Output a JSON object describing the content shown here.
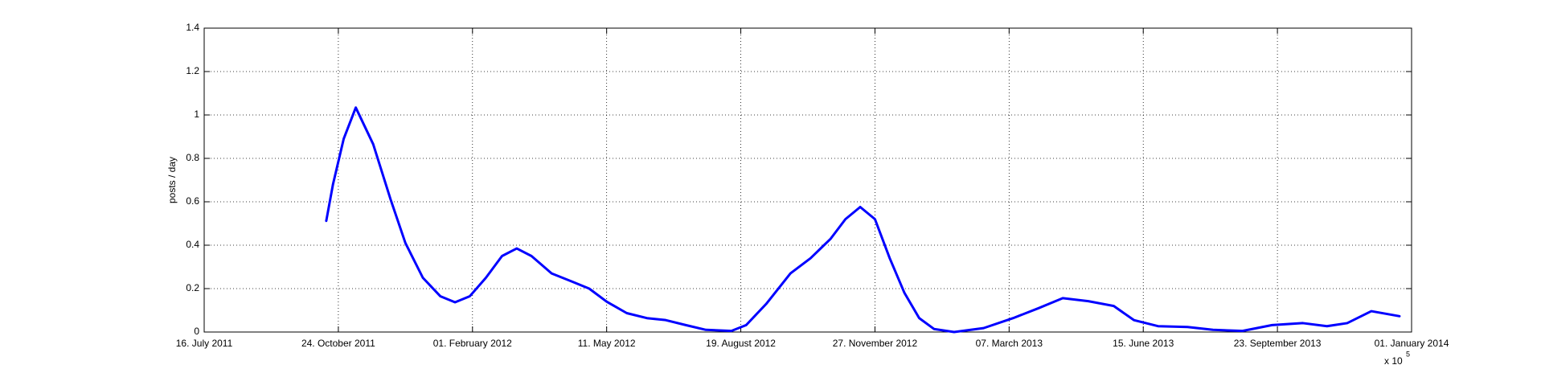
{
  "chart_data": {
    "type": "line",
    "y_label": "posts / day",
    "x_exponent_base": "x 10",
    "x_exponent": "5",
    "xlim": [
      734700,
      735600
    ],
    "xticks": [
      {
        "value": 734700,
        "label": "16. July 2011"
      },
      {
        "value": 734800,
        "label": "24. October 2011"
      },
      {
        "value": 734900,
        "label": "01. February 2012"
      },
      {
        "value": 735000,
        "label": "11. May 2012"
      },
      {
        "value": 735100,
        "label": "19. August 2012"
      },
      {
        "value": 735200,
        "label": "27. November 2012"
      },
      {
        "value": 735300,
        "label": "07. March 2013"
      },
      {
        "value": 735400,
        "label": "15. June 2013"
      },
      {
        "value": 735500,
        "label": "23. September 2013"
      },
      {
        "value": 735600,
        "label": "01. January 2014"
      }
    ],
    "ylim": [
      0,
      1.4
    ],
    "yticks": [
      0,
      0.2,
      0.4,
      0.6,
      0.8,
      1,
      1.2,
      1.4
    ],
    "grid": true,
    "series": [
      {
        "color": "#0000ff",
        "x": [
          734791,
          734796,
          734804,
          734813,
          734826,
          734839,
          734850,
          734863,
          734876,
          734887,
          734898,
          734910,
          734922,
          734933,
          734944,
          734959,
          734974,
          734987,
          735000,
          735015,
          735030,
          735044,
          735059,
          735074,
          735093,
          735104,
          735119,
          735137,
          735152,
          735167,
          735178,
          735189,
          735200,
          735211,
          735222,
          735233,
          735244,
          735259,
          735281,
          735303,
          735322,
          735340,
          735359,
          735378,
          735393,
          735411,
          735433,
          735452,
          735474,
          735496,
          735519,
          735537,
          735552,
          735570,
          735591
        ],
        "values": [
          0.512,
          0.68,
          0.89,
          1.034,
          0.865,
          0.61,
          0.41,
          0.25,
          0.165,
          0.137,
          0.165,
          0.25,
          0.35,
          0.385,
          0.35,
          0.27,
          0.233,
          0.2,
          0.14,
          0.087,
          0.064,
          0.055,
          0.032,
          0.01,
          0.005,
          0.032,
          0.13,
          0.27,
          0.34,
          0.43,
          0.52,
          0.576,
          0.52,
          0.34,
          0.18,
          0.064,
          0.014,
          0,
          0.018,
          0.064,
          0.11,
          0.156,
          0.142,
          0.12,
          0.055,
          0.027,
          0.023,
          0.01,
          0.005,
          0.032,
          0.041,
          0.027,
          0.041,
          0.096,
          0.073
        ]
      }
    ]
  }
}
